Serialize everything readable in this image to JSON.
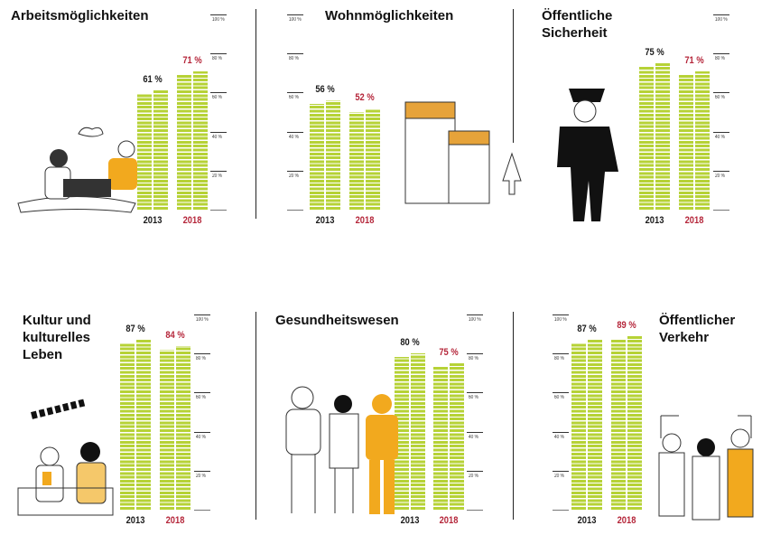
{
  "colors": {
    "bar": "#b6d236",
    "year_2013": "#1a1a1a",
    "year_2018": "#b5263a"
  },
  "axis_ticks": [
    "100 %",
    "80 %",
    "60 %",
    "40 %",
    "20 %"
  ],
  "chart_data": [
    {
      "type": "bar",
      "title": "Arbeitsmöglichkeiten",
      "categories": [
        "2013",
        "2018"
      ],
      "values": [
        61,
        71
      ],
      "labels": [
        "61 %",
        "71 %"
      ],
      "ylim": [
        0,
        100
      ],
      "axis": "right"
    },
    {
      "type": "bar",
      "title": "Wohnmöglichkeiten",
      "categories": [
        "2013",
        "2018"
      ],
      "values": [
        56,
        52
      ],
      "labels": [
        "56 %",
        "52 %"
      ],
      "ylim": [
        0,
        100
      ],
      "axis": "left"
    },
    {
      "type": "bar",
      "title": "Öffentliche\nSicherheit",
      "categories": [
        "2013",
        "2018"
      ],
      "values": [
        75,
        71
      ],
      "labels": [
        "75 %",
        "71 %"
      ],
      "ylim": [
        0,
        100
      ],
      "axis": "right"
    },
    {
      "type": "bar",
      "title": "Kultur und\nkulturelles\nLeben",
      "categories": [
        "2013",
        "2018"
      ],
      "values": [
        87,
        84
      ],
      "labels": [
        "87 %",
        "84 %"
      ],
      "ylim": [
        0,
        100
      ],
      "axis": "right"
    },
    {
      "type": "bar",
      "title": "Gesundheitswesen",
      "categories": [
        "2013",
        "2018"
      ],
      "values": [
        80,
        75
      ],
      "labels": [
        "80 %",
        "75 %"
      ],
      "ylim": [
        0,
        100
      ],
      "axis": "right"
    },
    {
      "type": "bar",
      "title": "Öffentlicher\nVerkehr",
      "categories": [
        "2013",
        "2018"
      ],
      "values": [
        87,
        89
      ],
      "labels": [
        "87 %",
        "89 %"
      ],
      "ylim": [
        0,
        100
      ],
      "axis": "left"
    }
  ]
}
